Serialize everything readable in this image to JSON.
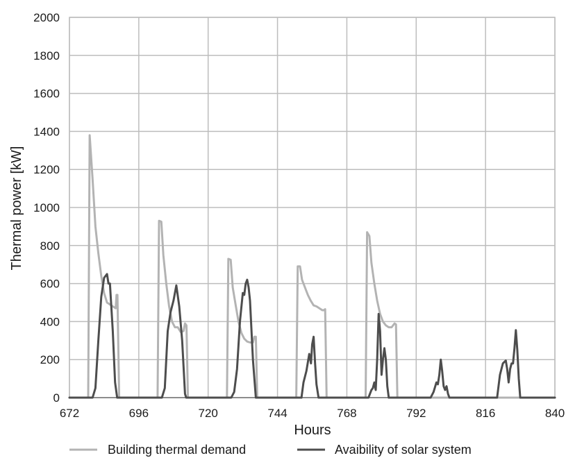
{
  "chart_data": {
    "type": "line",
    "title": "",
    "xlabel": "Hours",
    "ylabel": "Thermal power [kW]",
    "xlim": [
      672,
      840
    ],
    "ylim": [
      0,
      2000
    ],
    "xticks": [
      672,
      696,
      720,
      744,
      768,
      792,
      816,
      840
    ],
    "yticks": [
      0,
      200,
      400,
      600,
      800,
      1000,
      1200,
      1400,
      1600,
      1800,
      2000
    ],
    "grid": true,
    "legend_position": "bottom",
    "series": [
      {
        "name": "Building thermal demand",
        "color": "#b3b3b3",
        "x": [
          672,
          678.5,
          679,
          680,
          681,
          682,
          683,
          684,
          685,
          686,
          687,
          688,
          688.3,
          688.6,
          689.2,
          702.5,
          703,
          703.8,
          704.5,
          705.5,
          706.5,
          707.5,
          708.5,
          709.5,
          710.5,
          711.5,
          712,
          712.5,
          713,
          726.5,
          727,
          727.8,
          728.5,
          729.5,
          730.5,
          731.5,
          732.5,
          733.5,
          734.5,
          735.5,
          736,
          736.5,
          737,
          750.5,
          751,
          751.8,
          752.5,
          753.5,
          754.5,
          755.5,
          756.5,
          757.5,
          758.5,
          759.5,
          760,
          760.5,
          761,
          774.5,
          775,
          775.8,
          776.5,
          777.5,
          778.5,
          779.5,
          780.5,
          781.5,
          782.5,
          783.5,
          784.5,
          785,
          785.5,
          840
        ],
        "y": [
          0,
          0,
          1380,
          1150,
          900,
          760,
          640,
          550,
          500,
          490,
          480,
          470,
          540,
          540,
          0,
          0,
          930,
          925,
          750,
          600,
          480,
          400,
          370,
          370,
          345,
          350,
          390,
          380,
          0,
          0,
          730,
          725,
          580,
          490,
          400,
          340,
          310,
          295,
          290,
          290,
          320,
          320,
          0,
          0,
          690,
          690,
          620,
          580,
          540,
          510,
          485,
          480,
          470,
          460,
          460,
          465,
          0,
          0,
          870,
          850,
          710,
          600,
          510,
          440,
          400,
          380,
          370,
          370,
          390,
          385,
          0,
          0
        ]
      },
      {
        "name": "Avaibility of solar system",
        "color": "#4d4d4d",
        "x": [
          672,
          680,
          681,
          682,
          683,
          684,
          685,
          685.5,
          686,
          687,
          687.8,
          688.5,
          689,
          696,
          704,
          705,
          706,
          707,
          708,
          709,
          710,
          711,
          712,
          712.4,
          712.8,
          713.3,
          720,
          728,
          729,
          730,
          731,
          732,
          732.5,
          733,
          733.5,
          734,
          734.5,
          735.5,
          736.5,
          737.2,
          744,
          752.3,
          753,
          754,
          755,
          755.6,
          756,
          756.5,
          757,
          757.5,
          758.2,
          758.7,
          768,
          775.5,
          776,
          776.5,
          777,
          777.5,
          778,
          778.5,
          779,
          779.5,
          780,
          780.5,
          781,
          781.5,
          782,
          782.5,
          783,
          784,
          792,
          797,
          798,
          799,
          799.5,
          800,
          800.5,
          801,
          801.5,
          802,
          802.5,
          803,
          803.5,
          804,
          804.5,
          805,
          806,
          816,
          820,
          821,
          822,
          823,
          823.5,
          824,
          824.5,
          825,
          825.5,
          826,
          826.5,
          827,
          827.5,
          828,
          828.5,
          829,
          840
        ],
        "y": [
          0,
          0,
          50,
          300,
          530,
          630,
          650,
          600,
          600,
          350,
          80,
          0,
          0,
          0,
          0,
          50,
          350,
          450,
          510,
          590,
          480,
          300,
          20,
          0,
          0,
          0,
          0,
          0,
          30,
          150,
          400,
          550,
          540,
          600,
          620,
          580,
          510,
          200,
          0,
          0,
          0,
          0,
          80,
          140,
          230,
          180,
          280,
          320,
          180,
          70,
          0,
          0,
          0,
          0,
          20,
          40,
          50,
          80,
          40,
          200,
          440,
          350,
          120,
          200,
          260,
          200,
          60,
          0,
          0,
          0,
          0,
          0,
          30,
          80,
          70,
          120,
          200,
          140,
          60,
          40,
          60,
          20,
          0,
          0,
          0,
          0,
          0,
          0,
          0,
          120,
          180,
          195,
          150,
          80,
          150,
          180,
          180,
          260,
          355,
          250,
          100,
          0,
          0,
          0,
          0
        ]
      }
    ]
  }
}
